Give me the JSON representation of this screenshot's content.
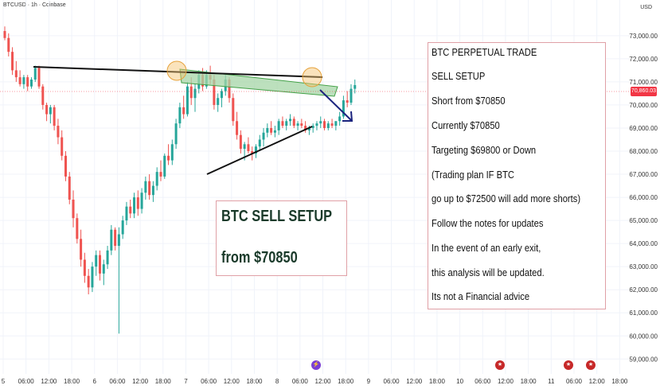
{
  "header": {
    "symbol": "BTCUSD · 1h · Coinbase",
    "currency": "USD"
  },
  "price_tag": "70,860.03",
  "setup_box": {
    "line1": "BTC SELL SETUP",
    "line2": "from $70850"
  },
  "notes": [
    "BTC PERPETUAL TRADE",
    "SELL SETUP",
    "Short from $70850",
    "Currently $70850",
    "Targeting $69800 or Down",
    "(Trading plan IF BTC",
    "go up to $72500 will add more shorts)",
    "Follow the notes for updates",
    "In the event of an early exit,",
    "this analysis will be updated.",
    "Its not a Financial advice"
  ],
  "colors": {
    "up": "#26a69a",
    "down": "#ef5350",
    "zone_fill": "#a5d6a7",
    "zone_stroke": "#43a047",
    "arrow": "#1a237e",
    "circle": "#f5c26b",
    "box_border": "#e0a0a6"
  },
  "icons": [
    "lightning-event-icon",
    "us-flag-event-icon",
    "us-flag-event-icon",
    "us-flag-event-icon"
  ],
  "chart_data": {
    "type": "candlestick",
    "title": "",
    "xlabel": "",
    "ylabel": "",
    "y_axis_labels": [
      "73,000.00",
      "72,000.00",
      "71,000.00",
      "70,000.00",
      "69,000.00",
      "68,000.00",
      "67,000.00",
      "66,000.00",
      "65,000.00",
      "64,000.00",
      "63,000.00",
      "62,000.00",
      "61,000.00",
      "60,000.00",
      "59,000.00"
    ],
    "y_axis_values": [
      73000,
      72000,
      71000,
      70000,
      69000,
      68000,
      67000,
      66000,
      65000,
      64000,
      63000,
      62000,
      61000,
      60000,
      59000
    ],
    "ylim": [
      58700,
      74200
    ],
    "x_tick_labels": [
      "5",
      "06:00",
      "12:00",
      "18:00",
      "6",
      "06:00",
      "12:00",
      "18:00",
      "7",
      "06:00",
      "12:00",
      "18:00",
      "8",
      "06:00",
      "12:00",
      "18:00",
      "9",
      "06:00",
      "12:00",
      "18:00",
      "10",
      "06:00",
      "12:00",
      "18:00",
      "11",
      "06:00",
      "12:00",
      "18:00"
    ],
    "x_tick_hours": [
      0,
      6,
      12,
      18,
      24,
      30,
      36,
      42,
      48,
      54,
      60,
      66,
      72,
      78,
      84,
      90,
      96,
      102,
      108,
      114,
      120,
      126,
      132,
      138,
      144,
      150,
      156,
      162
    ],
    "last_price": 70860.03,
    "ohlc": [
      [
        73200,
        73400,
        72800,
        72900
      ],
      [
        72900,
        73100,
        72100,
        72300
      ],
      [
        72300,
        72500,
        71300,
        71500
      ],
      [
        71500,
        71900,
        71000,
        71200
      ],
      [
        71200,
        71500,
        70800,
        70900
      ],
      [
        70900,
        71300,
        70700,
        71200
      ],
      [
        71200,
        71300,
        70600,
        70800
      ],
      [
        70800,
        71200,
        70700,
        71100
      ],
      [
        71100,
        71700,
        71000,
        71600
      ],
      [
        71600,
        71700,
        70700,
        70800
      ],
      [
        70800,
        70900,
        69800,
        70000
      ],
      [
        70000,
        70100,
        69300,
        69600
      ],
      [
        69600,
        70000,
        69200,
        69900
      ],
      [
        69900,
        70000,
        68900,
        69100
      ],
      [
        69100,
        69400,
        68300,
        68600
      ],
      [
        68600,
        68900,
        67600,
        67800
      ],
      [
        67800,
        68000,
        66700,
        66900
      ],
      [
        66900,
        67100,
        65700,
        65900
      ],
      [
        65900,
        66300,
        64700,
        65100
      ],
      [
        65100,
        65300,
        64000,
        64200
      ],
      [
        64200,
        64600,
        63000,
        63300
      ],
      [
        63300,
        63600,
        62300,
        62600
      ],
      [
        62600,
        62900,
        61800,
        62100
      ],
      [
        62100,
        63200,
        61900,
        63000
      ],
      [
        63000,
        63700,
        62600,
        63500
      ],
      [
        63500,
        63700,
        62400,
        62700
      ],
      [
        62700,
        63300,
        62200,
        63100
      ],
      [
        63100,
        63900,
        62900,
        63700
      ],
      [
        63700,
        64800,
        63500,
        64600
      ],
      [
        64600,
        64700,
        63700,
        63900
      ],
      [
        63900,
        64700,
        60100,
        64400
      ],
      [
        64400,
        65200,
        64200,
        65000
      ],
      [
        65000,
        65800,
        64800,
        65600
      ],
      [
        65600,
        65900,
        65100,
        65300
      ],
      [
        65300,
        66200,
        65100,
        66000
      ],
      [
        66000,
        66300,
        65200,
        65500
      ],
      [
        65500,
        66400,
        65300,
        66200
      ],
      [
        66200,
        66900,
        65900,
        66700
      ],
      [
        66700,
        67000,
        65900,
        66100
      ],
      [
        66100,
        66700,
        65800,
        66500
      ],
      [
        66500,
        67300,
        66300,
        67100
      ],
      [
        67100,
        67600,
        66700,
        66900
      ],
      [
        66900,
        67900,
        66800,
        67800
      ],
      [
        67800,
        68300,
        67400,
        67600
      ],
      [
        67600,
        68500,
        67400,
        68300
      ],
      [
        68300,
        69400,
        68100,
        69200
      ],
      [
        69200,
        70100,
        69000,
        69900
      ],
      [
        69900,
        70400,
        69400,
        69600
      ],
      [
        69600,
        71000,
        69500,
        70800
      ],
      [
        70800,
        71200,
        70000,
        70300
      ],
      [
        70300,
        70900,
        69700,
        70700
      ],
      [
        70700,
        71500,
        70500,
        71300
      ],
      [
        71300,
        71600,
        70600,
        70800
      ],
      [
        70800,
        71500,
        70700,
        71300
      ],
      [
        71300,
        71700,
        70900,
        71100
      ],
      [
        71100,
        71300,
        69800,
        70000
      ],
      [
        70000,
        70500,
        69700,
        70300
      ],
      [
        70300,
        70700,
        69900,
        70600
      ],
      [
        70600,
        71300,
        70400,
        71100
      ],
      [
        71100,
        71200,
        70100,
        70300
      ],
      [
        70300,
        70500,
        69100,
        69300
      ],
      [
        69300,
        69700,
        68500,
        68700
      ],
      [
        68700,
        68900,
        67900,
        68100
      ],
      [
        68100,
        68400,
        67600,
        68300
      ],
      [
        68300,
        68600,
        67900,
        68000
      ],
      [
        68000,
        68200,
        67600,
        67900
      ],
      [
        67900,
        68300,
        67700,
        68200
      ],
      [
        68200,
        68700,
        68000,
        68500
      ],
      [
        68500,
        69000,
        68200,
        68800
      ],
      [
        68800,
        69200,
        68600,
        69000
      ],
      [
        69000,
        69300,
        68700,
        68800
      ],
      [
        68800,
        69100,
        68600,
        68900
      ],
      [
        68900,
        69400,
        68700,
        69300
      ],
      [
        69300,
        69500,
        69000,
        69100
      ],
      [
        69100,
        69400,
        68900,
        69300
      ],
      [
        69300,
        69600,
        69100,
        69400
      ],
      [
        69400,
        69500,
        69000,
        69100
      ],
      [
        69100,
        69300,
        68900,
        69200
      ],
      [
        69200,
        69400,
        69000,
        69100
      ],
      [
        69100,
        69300,
        68800,
        68900
      ],
      [
        68900,
        69100,
        68700,
        69000
      ],
      [
        69000,
        69200,
        68800,
        69100
      ],
      [
        69100,
        69300,
        68900,
        69200
      ],
      [
        69200,
        69500,
        69000,
        69300
      ],
      [
        69300,
        69400,
        68900,
        69000
      ],
      [
        69000,
        69300,
        68900,
        69200
      ],
      [
        69200,
        69400,
        69000,
        69100
      ],
      [
        69100,
        69300,
        68900,
        69300
      ],
      [
        69300,
        69700,
        69100,
        69500
      ],
      [
        69500,
        70400,
        69400,
        70200
      ],
      [
        70200,
        70600,
        69900,
        70100
      ],
      [
        70100,
        70900,
        70000,
        70700
      ],
      [
        70700,
        71100,
        70500,
        70860
      ]
    ]
  }
}
